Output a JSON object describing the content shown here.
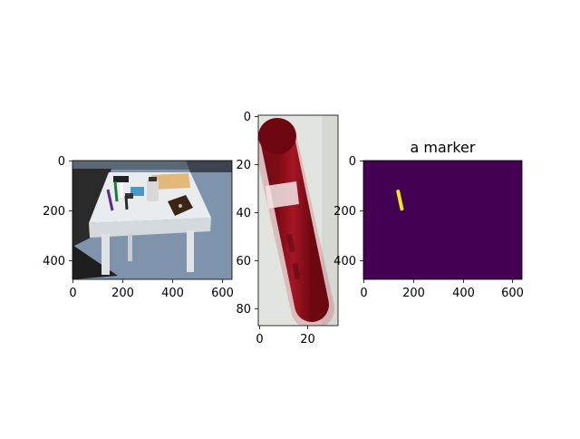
{
  "chart_data": [
    {
      "type": "image",
      "title": "",
      "content": "photo of a white table with markers and office items",
      "image_size": [
        640,
        480
      ],
      "xlim": [
        0,
        640
      ],
      "ylim": [
        480,
        0
      ],
      "xticks": [
        0,
        200,
        400,
        600
      ],
      "yticks": [
        0,
        200,
        400
      ]
    },
    {
      "type": "image",
      "title": "",
      "content": "cropped close-up of a red marker",
      "image_size": [
        32,
        88
      ],
      "xlim": [
        0,
        32
      ],
      "ylim": [
        88,
        0
      ],
      "xticks": [
        0,
        20
      ],
      "yticks": [
        0,
        20,
        40,
        60,
        80
      ]
    },
    {
      "type": "heatmap",
      "title": "a marker",
      "content": "binary segmentation mask",
      "image_size": [
        640,
        480
      ],
      "xlim": [
        0,
        640
      ],
      "ylim": [
        480,
        0
      ],
      "xticks": [
        0,
        200,
        400,
        600
      ],
      "yticks": [
        0,
        200,
        400
      ],
      "mask_segment": {
        "x1": 140,
        "y1": 125,
        "x2": 155,
        "y2": 195
      },
      "colors": {
        "background": "#440154",
        "foreground": "#f1e51d"
      }
    }
  ]
}
